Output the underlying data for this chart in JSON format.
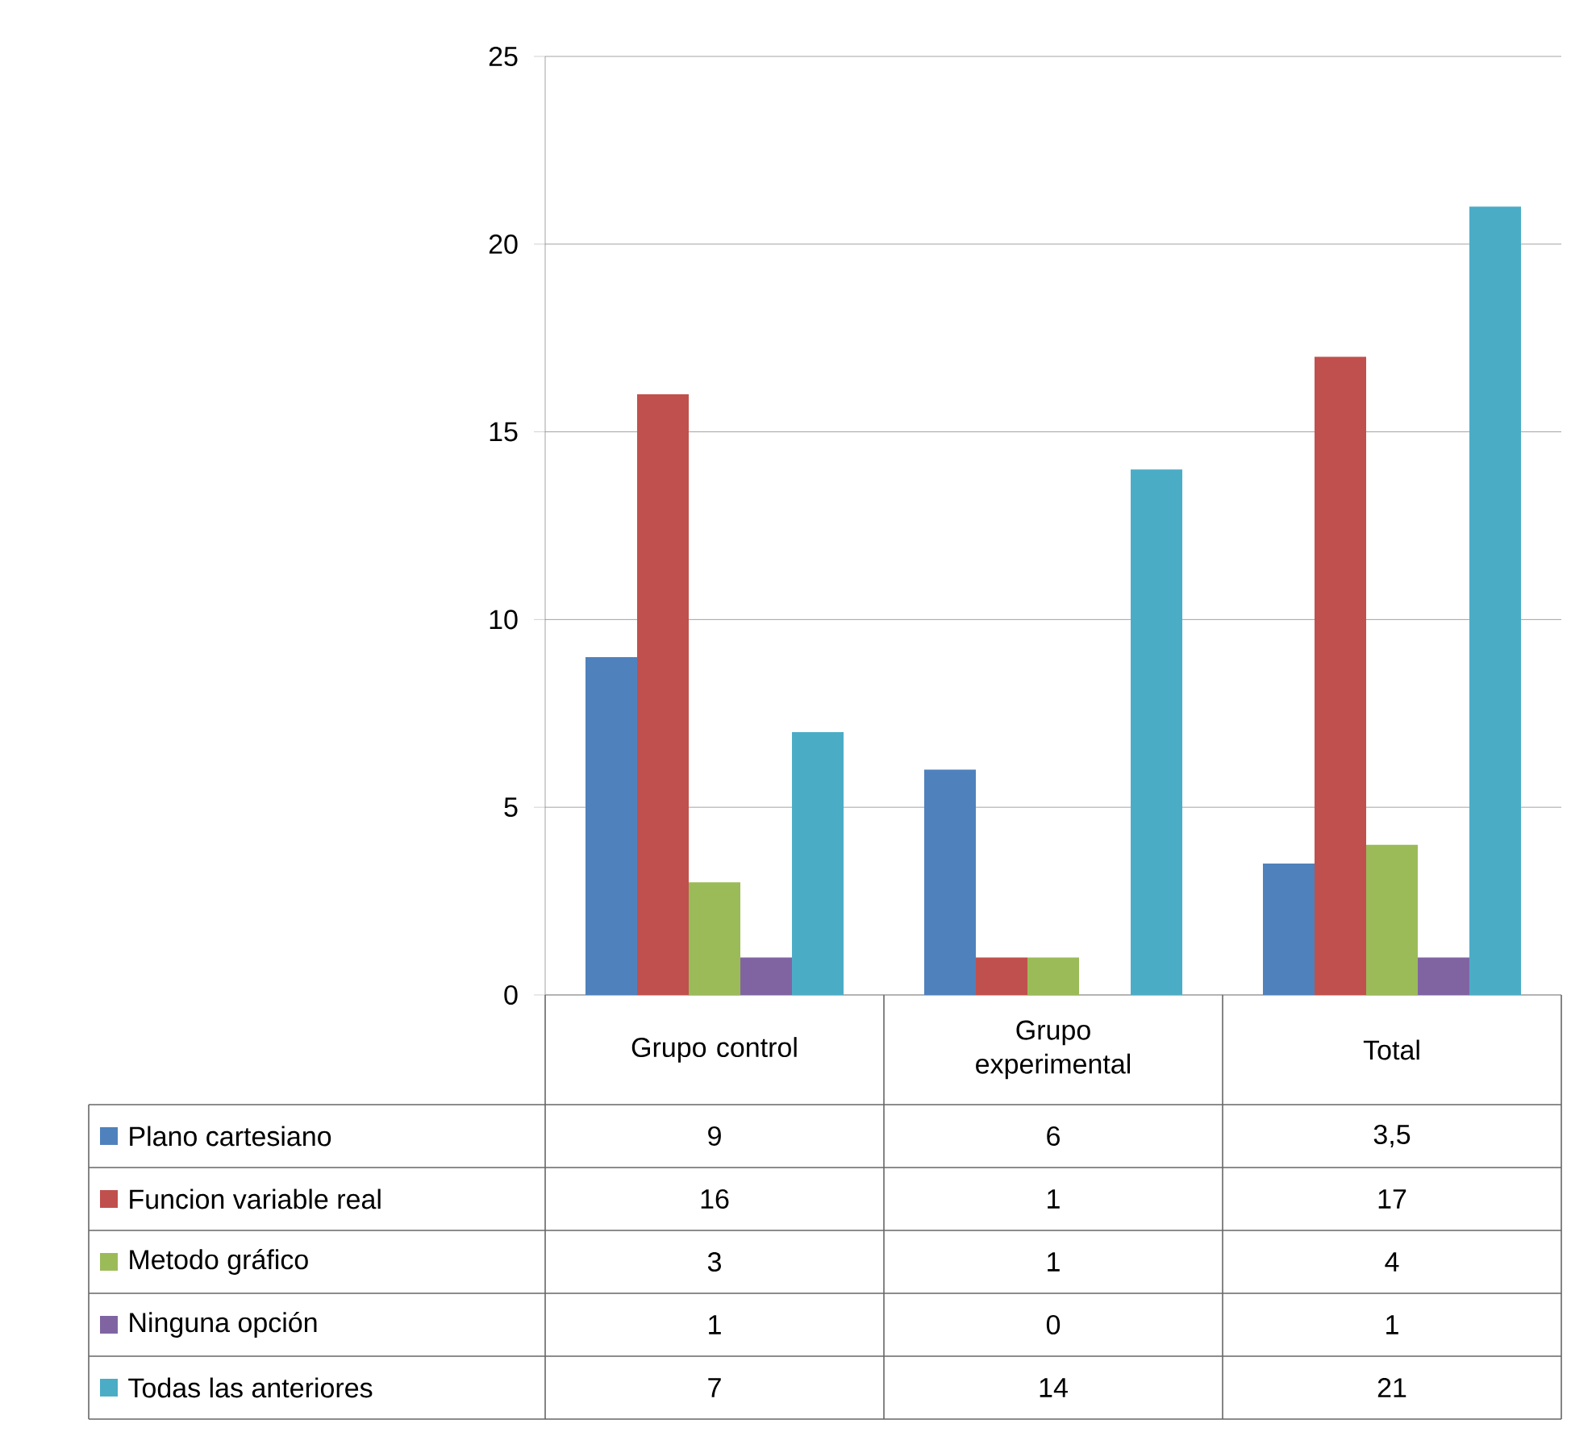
{
  "chart_data": {
    "type": "bar",
    "categories": [
      "Grupo control",
      "Grupo experimental",
      "Total"
    ],
    "series": [
      {
        "name": "Plano cartesiano",
        "color": "#4f81bd",
        "values": [
          9,
          6,
          3.5
        ],
        "value_labels": [
          "9",
          "6",
          "3,5"
        ]
      },
      {
        "name": "Funcion variable real",
        "color": "#c0504d",
        "values": [
          16,
          1,
          17
        ],
        "value_labels": [
          "16",
          "1",
          "17"
        ]
      },
      {
        "name": "Metodo gráfico",
        "color": "#9bbb59",
        "values": [
          3,
          1,
          4
        ],
        "value_labels": [
          "3",
          "1",
          "4"
        ]
      },
      {
        "name": "Ninguna opción",
        "color": "#8064a2",
        "values": [
          1,
          0,
          1
        ],
        "value_labels": [
          "1",
          "0",
          "1"
        ]
      },
      {
        "name": "Todas las anteriores",
        "color": "#4bacc6",
        "values": [
          7,
          14,
          21
        ],
        "value_labels": [
          "7",
          "14",
          "21"
        ]
      }
    ],
    "ylim": [
      0,
      25
    ],
    "yticks": [
      0,
      5,
      10,
      15,
      20,
      25
    ],
    "grid": "y",
    "legend": "bottom left"
  }
}
